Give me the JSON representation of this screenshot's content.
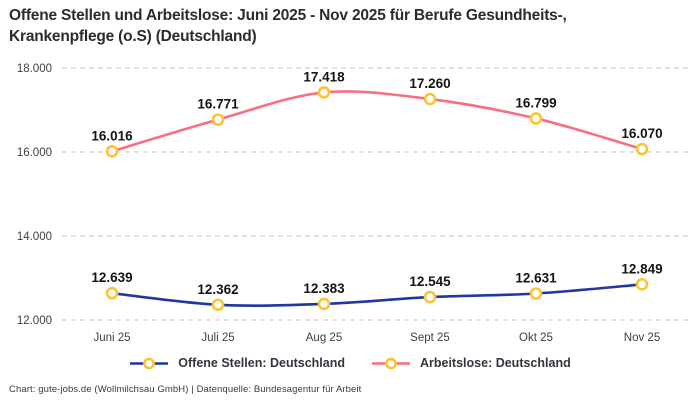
{
  "header": {
    "title_line1": "Offene Stellen und Arbeitslose: Juni 2025 - Nov 2025 für Berufe Gesundheits-,",
    "title_line2": "Krankenpflege (o.S) (Deutschland)"
  },
  "chart_data": {
    "type": "line",
    "title": "Offene Stellen und Arbeitslose: Juni 2025 - Nov 2025 für Berufe Gesundheits-, Krankenpflege (o.S) (Deutschland)",
    "categories": [
      "Juni 25",
      "Juli 25",
      "Aug 25",
      "Sept 25",
      "Okt 25",
      "Nov 25"
    ],
    "series": [
      {
        "name": "Offene Stellen: Deutschland",
        "color": "#1f379e",
        "values": [
          12639,
          12362,
          12383,
          12545,
          12631,
          12849
        ],
        "labels": [
          "12.639",
          "12.362",
          "12.383",
          "12.545",
          "12.631",
          "12.849"
        ]
      },
      {
        "name": "Arbeitslose: Deutschland",
        "color": "#f96e80",
        "values": [
          16016,
          16771,
          17418,
          17260,
          16799,
          16070
        ],
        "labels": [
          "16.016",
          "16.771",
          "17.418",
          "17.260",
          "16.799",
          "16.070"
        ]
      }
    ],
    "marker": {
      "fill": "#ffffff",
      "stroke": "#fcc434"
    },
    "yticks": [
      {
        "value": 12000,
        "label": "12.000"
      },
      {
        "value": 14000,
        "label": "14.000"
      },
      {
        "value": 16000,
        "label": "16.000"
      },
      {
        "value": 18000,
        "label": "18.000"
      }
    ],
    "ylim": [
      12000,
      18000
    ],
    "xlabel": "",
    "ylabel": "",
    "grid": true,
    "grid_color": "#cfcfcf",
    "data_label_color": "#141414",
    "axis_label_color": "#3f3f3f",
    "legend_position": "bottom"
  },
  "footer": {
    "text": "Chart: gute-jobs.de (Wollmilchsau GmbH) | Datenquelle: Bundesagentur für Arbeit"
  }
}
